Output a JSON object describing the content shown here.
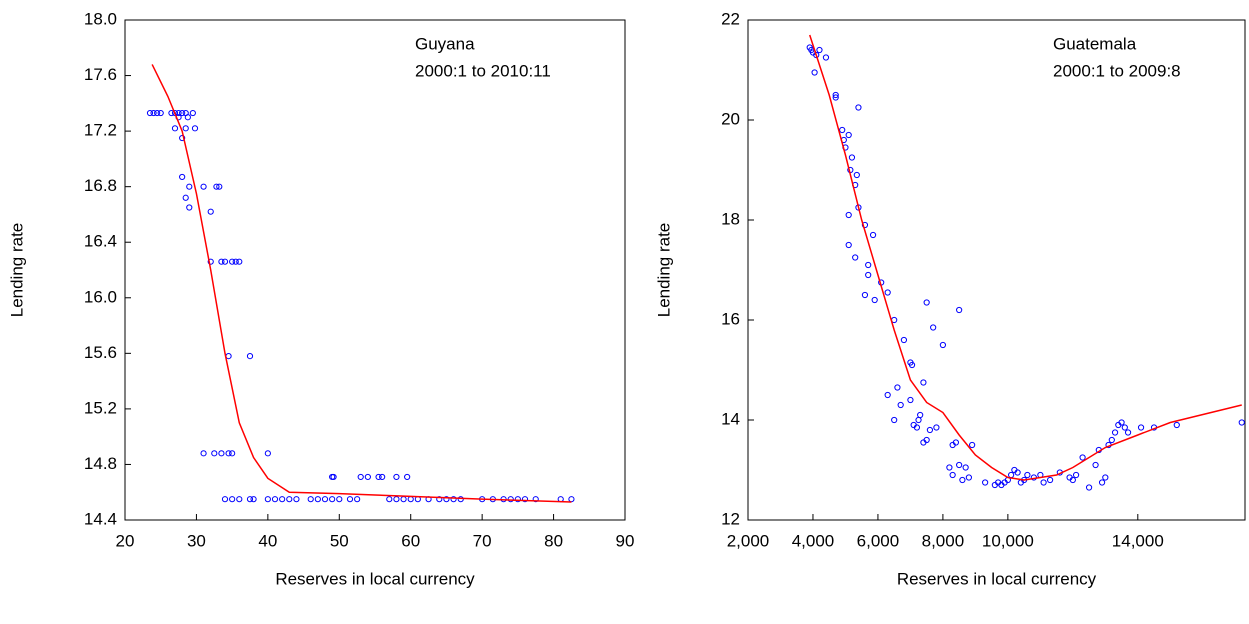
{
  "chart_data": [
    {
      "type": "scatter",
      "ylabel": "Lending rate",
      "xlabel": "Reserves in local currency",
      "annotations": [
        "Guyana",
        "2000:1 to 2010:11"
      ],
      "xlim": [
        20,
        90
      ],
      "xticks": [
        20,
        30,
        40,
        50,
        60,
        70,
        80,
        90
      ],
      "ylim": [
        14.4,
        18.0
      ],
      "yticks": [
        14.4,
        14.8,
        15.2,
        15.6,
        {
          "value": 16,
          "label": "16.0"
        },
        16.4,
        16.8,
        17.2,
        17.6,
        {
          "value": 18,
          "label": "18.0"
        }
      ],
      "series": [
        {
          "type": "scatter",
          "color": "#0000ff",
          "x": [
            23.5,
            24,
            24.5,
            25,
            26.5,
            27,
            27.5,
            28,
            28.5,
            29.5,
            27.5,
            28.8,
            27,
            28.5,
            29.8,
            28,
            28,
            29,
            31,
            32.8,
            33.2,
            28.5,
            29,
            32,
            32,
            33.5,
            34,
            35,
            35.5,
            36,
            34.5,
            37.5,
            31,
            32.5,
            33.5,
            34.5,
            35,
            40,
            49,
            49.2,
            53,
            54,
            55.5,
            56,
            58,
            59.5,
            34,
            35,
            36,
            37.5,
            38,
            40,
            41,
            42,
            43,
            44,
            46,
            47,
            48,
            49,
            50,
            51.5,
            52.5,
            57,
            58,
            59,
            60,
            61,
            62.5,
            64,
            65,
            66,
            67,
            70,
            71.5,
            73,
            74,
            75,
            76,
            77.5,
            81,
            82.5
          ],
          "values": [
            17.33,
            17.33,
            17.33,
            17.33,
            17.33,
            17.33,
            17.33,
            17.33,
            17.33,
            17.33,
            17.3,
            17.3,
            17.22,
            17.22,
            17.22,
            17.15,
            16.87,
            16.8,
            16.8,
            16.8,
            16.8,
            16.72,
            16.65,
            16.62,
            16.26,
            16.26,
            16.26,
            16.26,
            16.26,
            16.26,
            15.58,
            15.58,
            14.88,
            14.88,
            14.88,
            14.88,
            14.88,
            14.88,
            14.71,
            14.71,
            14.71,
            14.71,
            14.71,
            14.71,
            14.71,
            14.71,
            14.55,
            14.55,
            14.55,
            14.55,
            14.55,
            14.55,
            14.55,
            14.55,
            14.55,
            14.55,
            14.55,
            14.55,
            14.55,
            14.55,
            14.55,
            14.55,
            14.55,
            14.55,
            14.55,
            14.55,
            14.55,
            14.55,
            14.55,
            14.55,
            14.55,
            14.55,
            14.55,
            14.55,
            14.55,
            14.55,
            14.55,
            14.55,
            14.55,
            14.55,
            14.55,
            14.55
          ]
        },
        {
          "type": "line",
          "color": "#ff0000",
          "x": [
            23.8,
            26,
            28,
            30,
            32,
            34,
            36,
            38,
            40,
            43,
            50,
            55,
            60,
            70,
            82.5
          ],
          "values": [
            17.68,
            17.45,
            17.2,
            16.75,
            16.2,
            15.6,
            15.1,
            14.85,
            14.7,
            14.6,
            14.59,
            14.58,
            14.57,
            14.55,
            14.53
          ]
        }
      ]
    },
    {
      "type": "scatter",
      "ylabel": "Lending rate",
      "xlabel": "Reserves in local currency",
      "annotations": [
        "Guatemala",
        "2000:1 to 2009:8"
      ],
      "xlim": [
        2000,
        17300
      ],
      "xticks": [
        {
          "value": 2000,
          "label": "2,000"
        },
        {
          "value": 4000,
          "label": "4,000"
        },
        {
          "value": 6000,
          "label": "6,000"
        },
        {
          "value": 8000,
          "label": "8,000"
        },
        {
          "value": 10000,
          "label": "10,000"
        },
        {
          "value": 14000,
          "label": "14,000"
        }
      ],
      "ylim": [
        12,
        22
      ],
      "yticks": [
        12,
        14,
        16,
        18,
        20,
        22
      ],
      "series": [
        {
          "type": "scatter",
          "color": "#0000ff",
          "x": [
            3900,
            4000,
            4100,
            3950,
            4200,
            4050,
            4400,
            4700,
            4700,
            4900,
            4950,
            5000,
            5100,
            5150,
            5200,
            5300,
            5350,
            5400,
            5100,
            5400,
            5100,
            5300,
            5600,
            5700,
            5850,
            5600,
            5900,
            5700,
            6100,
            6300,
            6500,
            6300,
            6600,
            6700,
            6500,
            6800,
            7000,
            7050,
            7000,
            7100,
            7200,
            7250,
            7300,
            7400,
            7500,
            7400,
            7500,
            7600,
            7800,
            7700,
            8000,
            8300,
            8400,
            8200,
            8300,
            8500,
            8700,
            8600,
            8500,
            8800,
            8900,
            9300,
            9600,
            9700,
            9800,
            9900,
            10000,
            10100,
            10200,
            10300,
            10400,
            10500,
            10600,
            10800,
            11000,
            11100,
            11300,
            11600,
            11900,
            12000,
            12100,
            12300,
            12500,
            12700,
            12800,
            12900,
            13000,
            13100,
            13200,
            13300,
            13400,
            13500,
            13600,
            13700,
            14100,
            14500,
            15200,
            17200
          ],
          "values": [
            21.45,
            21.35,
            21.3,
            21.4,
            21.4,
            20.95,
            21.25,
            20.5,
            20.45,
            19.8,
            19.6,
            19.45,
            19.7,
            19.0,
            19.25,
            18.7,
            18.9,
            20.25,
            18.1,
            18.25,
            17.5,
            17.25,
            17.9,
            17.1,
            17.7,
            16.5,
            16.4,
            16.9,
            16.75,
            16.55,
            16.0,
            14.5,
            14.65,
            14.3,
            14.0,
            15.6,
            15.15,
            15.1,
            14.4,
            13.9,
            13.85,
            14.0,
            14.1,
            14.75,
            16.35,
            13.55,
            13.6,
            13.8,
            13.85,
            15.85,
            15.5,
            13.5,
            13.55,
            13.05,
            12.9,
            13.1,
            13.05,
            12.8,
            16.2,
            12.85,
            13.5,
            12.75,
            12.7,
            12.75,
            12.7,
            12.75,
            12.8,
            12.9,
            13.0,
            12.95,
            12.75,
            12.8,
            12.9,
            12.85,
            12.9,
            12.75,
            12.8,
            12.95,
            12.85,
            12.8,
            12.9,
            13.25,
            12.65,
            13.1,
            13.4,
            12.75,
            12.85,
            13.5,
            13.6,
            13.75,
            13.9,
            13.95,
            13.85,
            13.75,
            13.85,
            13.85,
            13.9,
            13.95
          ]
        },
        {
          "type": "line",
          "color": "#ff0000",
          "x": [
            3900,
            4500,
            5000,
            5500,
            6000,
            6500,
            7000,
            7500,
            8000,
            8500,
            9000,
            9500,
            10000,
            10500,
            11000,
            11500,
            12000,
            13000,
            14000,
            15000,
            17200
          ],
          "values": [
            21.7,
            20.5,
            19.3,
            18.0,
            16.9,
            15.8,
            14.8,
            14.35,
            14.15,
            13.7,
            13.3,
            13.05,
            12.85,
            12.8,
            12.85,
            12.9,
            13.05,
            13.45,
            13.7,
            13.95,
            14.3
          ]
        }
      ]
    }
  ]
}
